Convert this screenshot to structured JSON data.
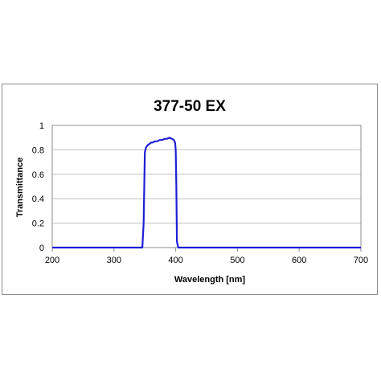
{
  "chart_data": {
    "type": "line",
    "title": "377-50 EX",
    "xlabel": "Wavelength [nm]",
    "ylabel": "Transmittance",
    "xlim": [
      200,
      700
    ],
    "ylim": [
      0,
      1
    ],
    "xticks": [
      200,
      300,
      400,
      500,
      600,
      700
    ],
    "yticks": [
      0,
      0.2,
      0.4,
      0.6,
      0.8,
      1
    ],
    "ytick_labels": [
      "0",
      "0.2",
      "0.4",
      "0.6",
      "0.8",
      "1"
    ],
    "grid": true,
    "legend": "none",
    "series": [
      {
        "color": "#1f1fd6",
        "x": [
          200,
          346,
          348,
          350,
          352,
          355,
          358,
          360,
          363,
          366,
          370,
          374,
          378,
          382,
          386,
          390,
          394,
          397,
          399,
          400,
          401,
          402,
          404,
          700
        ],
        "y": [
          0,
          0,
          0.2,
          0.78,
          0.82,
          0.84,
          0.85,
          0.86,
          0.86,
          0.87,
          0.87,
          0.88,
          0.88,
          0.89,
          0.89,
          0.9,
          0.89,
          0.88,
          0.86,
          0.8,
          0.5,
          0.05,
          0,
          0
        ]
      }
    ]
  }
}
